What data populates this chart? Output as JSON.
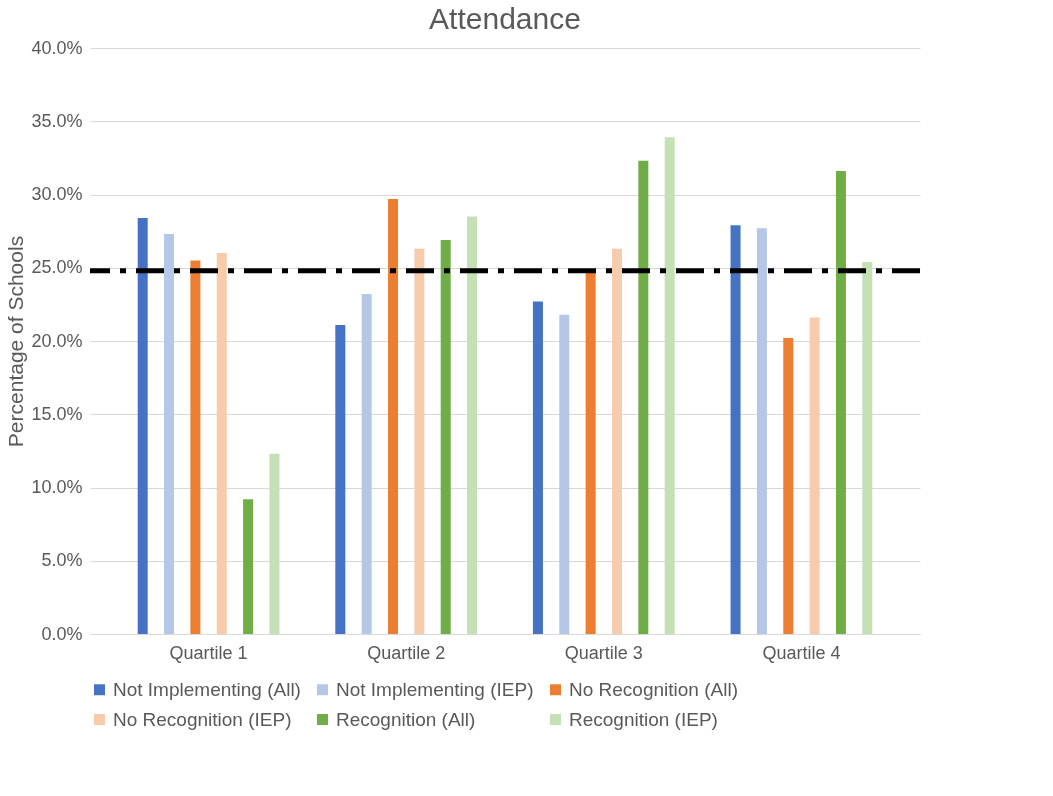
{
  "chart_data": {
    "type": "bar",
    "title": "Attendance",
    "ylabel": "Percentage of Schools",
    "categories": [
      "Quartile 1",
      "Quartile 2",
      "Quartile 3",
      "Quartile 4"
    ],
    "series": [
      {
        "name": "Not Implementing (All)",
        "color": "#4472c4",
        "values": [
          28.4,
          21.1,
          22.7,
          27.9
        ]
      },
      {
        "name": "Not Implementing (IEP)",
        "color": "#b4c7e7",
        "values": [
          27.3,
          23.2,
          21.8,
          27.7
        ]
      },
      {
        "name": "No Recognition (All)",
        "color": "#ed7d31",
        "values": [
          25.5,
          29.7,
          24.8,
          20.2
        ]
      },
      {
        "name": "No  Recognition (IEP)",
        "color": "#f8cbad",
        "values": [
          26.0,
          26.3,
          26.3,
          21.6
        ]
      },
      {
        "name": "Recognition (All)",
        "color": "#70ad47",
        "values": [
          9.2,
          26.9,
          32.3,
          31.6
        ]
      },
      {
        "name": "Recognition (IEP)",
        "color": "#c5e0b4",
        "values": [
          12.3,
          28.5,
          33.9,
          25.4
        ]
      }
    ],
    "ylim": [
      0,
      40
    ],
    "yticks": [
      {
        "value": 0,
        "label": "0.0%"
      },
      {
        "value": 5,
        "label": "5.0%"
      },
      {
        "value": 10,
        "label": "10.0%"
      },
      {
        "value": 15,
        "label": "15.0%"
      },
      {
        "value": 20,
        "label": "20.0%"
      },
      {
        "value": 25,
        "label": "25.0%"
      },
      {
        "value": 30,
        "label": "30.0%"
      },
      {
        "value": 35,
        "label": "35.0%"
      },
      {
        "value": 40,
        "label": "40.0%"
      }
    ],
    "ref_lines": [
      {
        "axis": "y",
        "value": 24.8,
        "color": "#000000",
        "line_style": "dashed"
      }
    ],
    "grid": "y",
    "legend": "bottom"
  }
}
